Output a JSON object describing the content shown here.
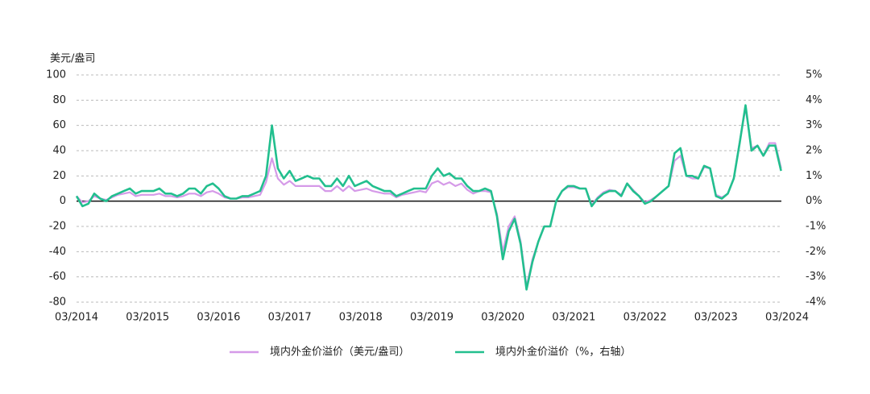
{
  "chart_data": {
    "type": "line",
    "y_axis_title": "美元/盎司",
    "categories": [
      "03/2014",
      null,
      null,
      null,
      null,
      null,
      null,
      null,
      null,
      null,
      null,
      null,
      "03/2015",
      null,
      null,
      null,
      null,
      null,
      null,
      null,
      null,
      null,
      null,
      null,
      "03/2016",
      null,
      null,
      null,
      null,
      null,
      null,
      null,
      null,
      null,
      null,
      null,
      "03/2017",
      null,
      null,
      null,
      null,
      null,
      null,
      null,
      null,
      null,
      null,
      null,
      "03/2018",
      null,
      null,
      null,
      null,
      null,
      null,
      null,
      null,
      null,
      null,
      null,
      "03/2019",
      null,
      null,
      null,
      null,
      null,
      null,
      null,
      null,
      null,
      null,
      null,
      "03/2020",
      null,
      null,
      null,
      null,
      null,
      null,
      null,
      null,
      null,
      null,
      null,
      "03/2021",
      null,
      null,
      null,
      null,
      null,
      null,
      null,
      null,
      null,
      null,
      null,
      "03/2022",
      null,
      null,
      null,
      null,
      null,
      null,
      null,
      null,
      null,
      null,
      null,
      "03/2023",
      null,
      null,
      null,
      null,
      null,
      null,
      null,
      null,
      null,
      null,
      null,
      "03/2024"
    ],
    "series": [
      {
        "name": "境内外金价溢价（美元/盎司）",
        "color": "#d59ae8",
        "axis": "y",
        "values": [
          4,
          -1,
          0,
          4,
          2,
          1,
          3,
          5,
          6,
          7,
          4,
          5,
          5,
          5,
          6,
          4,
          4,
          3,
          4,
          6,
          6,
          4,
          7,
          8,
          6,
          3,
          2,
          2,
          3,
          3,
          4,
          5,
          15,
          34,
          18,
          13,
          16,
          12,
          12,
          12,
          12,
          12,
          8,
          8,
          12,
          8,
          12,
          8,
          9,
          10,
          8,
          7,
          6,
          6,
          3,
          5,
          6,
          7,
          8,
          7,
          14,
          16,
          13,
          15,
          12,
          14,
          9,
          6,
          8,
          8,
          7,
          -10,
          -40,
          -20,
          -12,
          -32,
          -68,
          -46,
          -32,
          -20,
          -20,
          0,
          8,
          11,
          11,
          10,
          10,
          -3,
          3,
          7,
          9,
          8,
          5,
          14,
          9,
          4,
          -1,
          1,
          4,
          8,
          12,
          32,
          36,
          20,
          18,
          18,
          27,
          26,
          5,
          3,
          6,
          18,
          47,
          74,
          42,
          44,
          36,
          46,
          46,
          26,
          null
        ]
      },
      {
        "name": "境内外金价溢价（%，右轴）",
        "color": "#22bf8e",
        "axis": "y2",
        "values": [
          0.2,
          -0.2,
          -0.1,
          0.3,
          0.1,
          0.0,
          0.2,
          0.3,
          0.4,
          0.5,
          0.3,
          0.4,
          0.4,
          0.4,
          0.5,
          0.3,
          0.3,
          0.2,
          0.3,
          0.5,
          0.5,
          0.3,
          0.6,
          0.7,
          0.5,
          0.2,
          0.1,
          0.1,
          0.2,
          0.2,
          0.3,
          0.4,
          1.0,
          3.0,
          1.3,
          0.9,
          1.2,
          0.8,
          0.9,
          1.0,
          0.9,
          0.9,
          0.6,
          0.6,
          0.9,
          0.6,
          1.0,
          0.6,
          0.7,
          0.8,
          0.6,
          0.5,
          0.4,
          0.4,
          0.2,
          0.3,
          0.4,
          0.5,
          0.5,
          0.5,
          1.0,
          1.3,
          1.0,
          1.1,
          0.9,
          0.9,
          0.6,
          0.4,
          0.4,
          0.5,
          0.4,
          -0.6,
          -2.3,
          -1.2,
          -0.7,
          -1.7,
          -3.5,
          -2.4,
          -1.6,
          -1.0,
          -1.0,
          0.0,
          0.4,
          0.6,
          0.6,
          0.5,
          0.5,
          -0.2,
          0.1,
          0.3,
          0.4,
          0.4,
          0.2,
          0.7,
          0.4,
          0.2,
          -0.1,
          0.0,
          0.2,
          0.4,
          0.6,
          1.9,
          2.1,
          1.0,
          1.0,
          0.9,
          1.4,
          1.3,
          0.2,
          0.1,
          0.3,
          0.9,
          2.3,
          3.8,
          2.0,
          2.2,
          1.8,
          2.2,
          2.2,
          1.2,
          null
        ]
      }
    ],
    "ylim": [
      -80,
      100
    ],
    "yticks": [
      -80,
      -60,
      -40,
      -20,
      0,
      20,
      40,
      60,
      80,
      100
    ],
    "y2lim": [
      -4,
      5
    ],
    "y2ticks": [
      {
        "value": -4,
        "label": "-4%"
      },
      {
        "value": -3,
        "label": "-3%"
      },
      {
        "value": -2,
        "label": "-2%"
      },
      {
        "value": -1,
        "label": "-1%"
      },
      {
        "value": 0,
        "label": "0%"
      },
      {
        "value": 1,
        "label": "1%"
      },
      {
        "value": 2,
        "label": "2%"
      },
      {
        "value": 3,
        "label": "3%"
      },
      {
        "value": 4,
        "label": "4%"
      },
      {
        "value": 5,
        "label": "5%"
      }
    ],
    "grid": true
  }
}
